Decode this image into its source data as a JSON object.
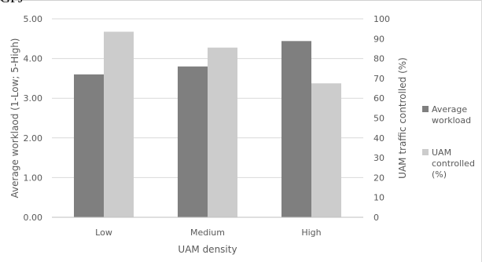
{
  "top_fragment": "GPJ",
  "colors": {
    "workload": "#7f7f7f",
    "controlled": "#cccccc",
    "grid": "#d9d9d9",
    "text": "#595959"
  },
  "chart_data": {
    "type": "bar",
    "title": "",
    "categories": [
      "Low",
      "Medium",
      "High"
    ],
    "xlabel": "UAM density",
    "ylabel": "Average worklaod (1-Low; 5-High)",
    "y2label": "UAM traffic controlled (%)",
    "ylim": [
      0,
      5
    ],
    "y2lim": [
      0,
      100
    ],
    "yticks": [
      "0.00",
      "1.00",
      "2.00",
      "3.00",
      "4.00",
      "5.00"
    ],
    "y2ticks": [
      "0",
      "10",
      "20",
      "30",
      "40",
      "50",
      "60",
      "70",
      "80",
      "90",
      "100"
    ],
    "grid": true,
    "legend_position": "right",
    "series": [
      {
        "name": "Average workload",
        "legend_lines": [
          "Average",
          "workload"
        ],
        "axis": "left",
        "values": [
          3.6,
          3.8,
          4.44
        ]
      },
      {
        "name": "UAM controlled (%)",
        "legend_lines": [
          "UAM",
          "controlled",
          "(%)"
        ],
        "axis": "right",
        "values": [
          93.5,
          85.5,
          67.5
        ]
      }
    ]
  }
}
